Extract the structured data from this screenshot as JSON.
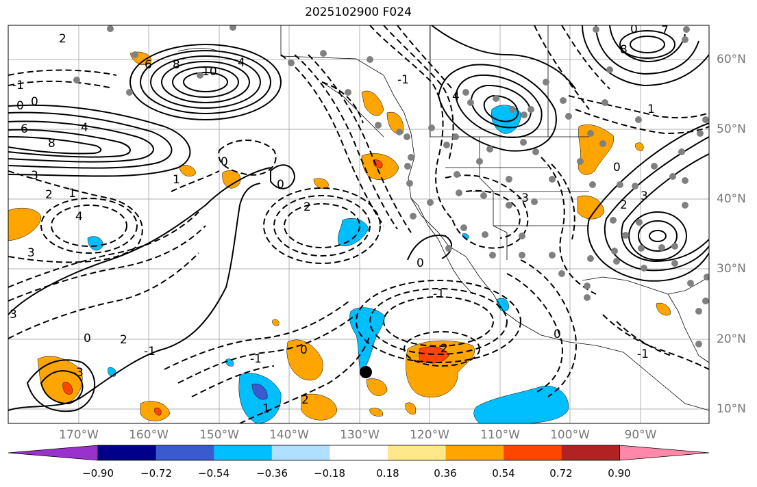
{
  "title": "2025102900 F024",
  "lat_labels": [
    "60°N",
    "50°N",
    "40°N",
    "30°N",
    "20°N",
    "10°N"
  ],
  "lon_labels": [
    "170°W",
    "160°W",
    "150°W",
    "140°W",
    "130°W",
    "120°W",
    "110°W",
    "100°W",
    "90°W"
  ],
  "colorbar": {
    "ticks": [
      "−0.90",
      "−0.72",
      "−0.54",
      "−0.36",
      "−0.18",
      "0.18",
      "0.36",
      "0.54",
      "0.72",
      "0.90"
    ],
    "colors": [
      "#9932cc",
      "#00008b",
      "#3a5bcd",
      "#00bfff",
      "#b0e0ff",
      "#ffffff",
      "#ffe88a",
      "#ffa500",
      "#ff4500",
      "#b22222",
      "#ff88aa"
    ]
  },
  "contour_labels": [
    {
      "text": "2",
      "c": "black"
    },
    {
      "text": "4",
      "c": "black"
    },
    {
      "text": "6",
      "c": "black"
    },
    {
      "text": "8",
      "c": "black"
    },
    {
      "text": "10",
      "c": "black"
    },
    {
      "text": "0",
      "c": "black"
    },
    {
      "text": "-1",
      "c": "black"
    },
    {
      "text": "0",
      "c": "black"
    },
    {
      "text": "6",
      "c": "black"
    },
    {
      "text": "4",
      "c": "black"
    },
    {
      "text": "8",
      "c": "black"
    },
    {
      "text": "3",
      "c": "black"
    },
    {
      "text": "1",
      "c": "black"
    },
    {
      "text": "2",
      "c": "black"
    },
    {
      "text": "1",
      "c": "black"
    },
    {
      "text": "4",
      "c": "black"
    },
    {
      "text": "3",
      "c": "black"
    },
    {
      "text": "0",
      "c": "black"
    },
    {
      "text": "0",
      "c": "black"
    },
    {
      "text": "2",
      "c": "black"
    },
    {
      "text": "0",
      "c": "black"
    },
    {
      "text": "-1",
      "c": "black"
    },
    {
      "text": "2",
      "c": "black"
    },
    {
      "text": "2",
      "c": "black"
    },
    {
      "text": "-1",
      "c": "black"
    },
    {
      "text": "-3",
      "c": "black"
    },
    {
      "text": "-1",
      "c": "black"
    },
    {
      "text": "1",
      "c": "black"
    },
    {
      "text": "0",
      "c": "black"
    },
    {
      "text": "2",
      "c": "black"
    },
    {
      "text": "-1",
      "c": "black"
    },
    {
      "text": "4",
      "c": "black"
    },
    {
      "text": "8",
      "c": "black"
    },
    {
      "text": "7",
      "c": "black"
    },
    {
      "text": "0",
      "c": "black"
    },
    {
      "text": "1",
      "c": "black"
    },
    {
      "text": "3",
      "c": "black"
    },
    {
      "text": "2",
      "c": "black"
    },
    {
      "text": "-3",
      "c": "black"
    },
    {
      "text": "0",
      "c": "black"
    },
    {
      "text": "-1",
      "c": "black"
    },
    {
      "text": "3",
      "c": "black"
    },
    {
      "text": "0",
      "c": "black"
    },
    {
      "text": "0",
      "c": "black"
    }
  ]
}
